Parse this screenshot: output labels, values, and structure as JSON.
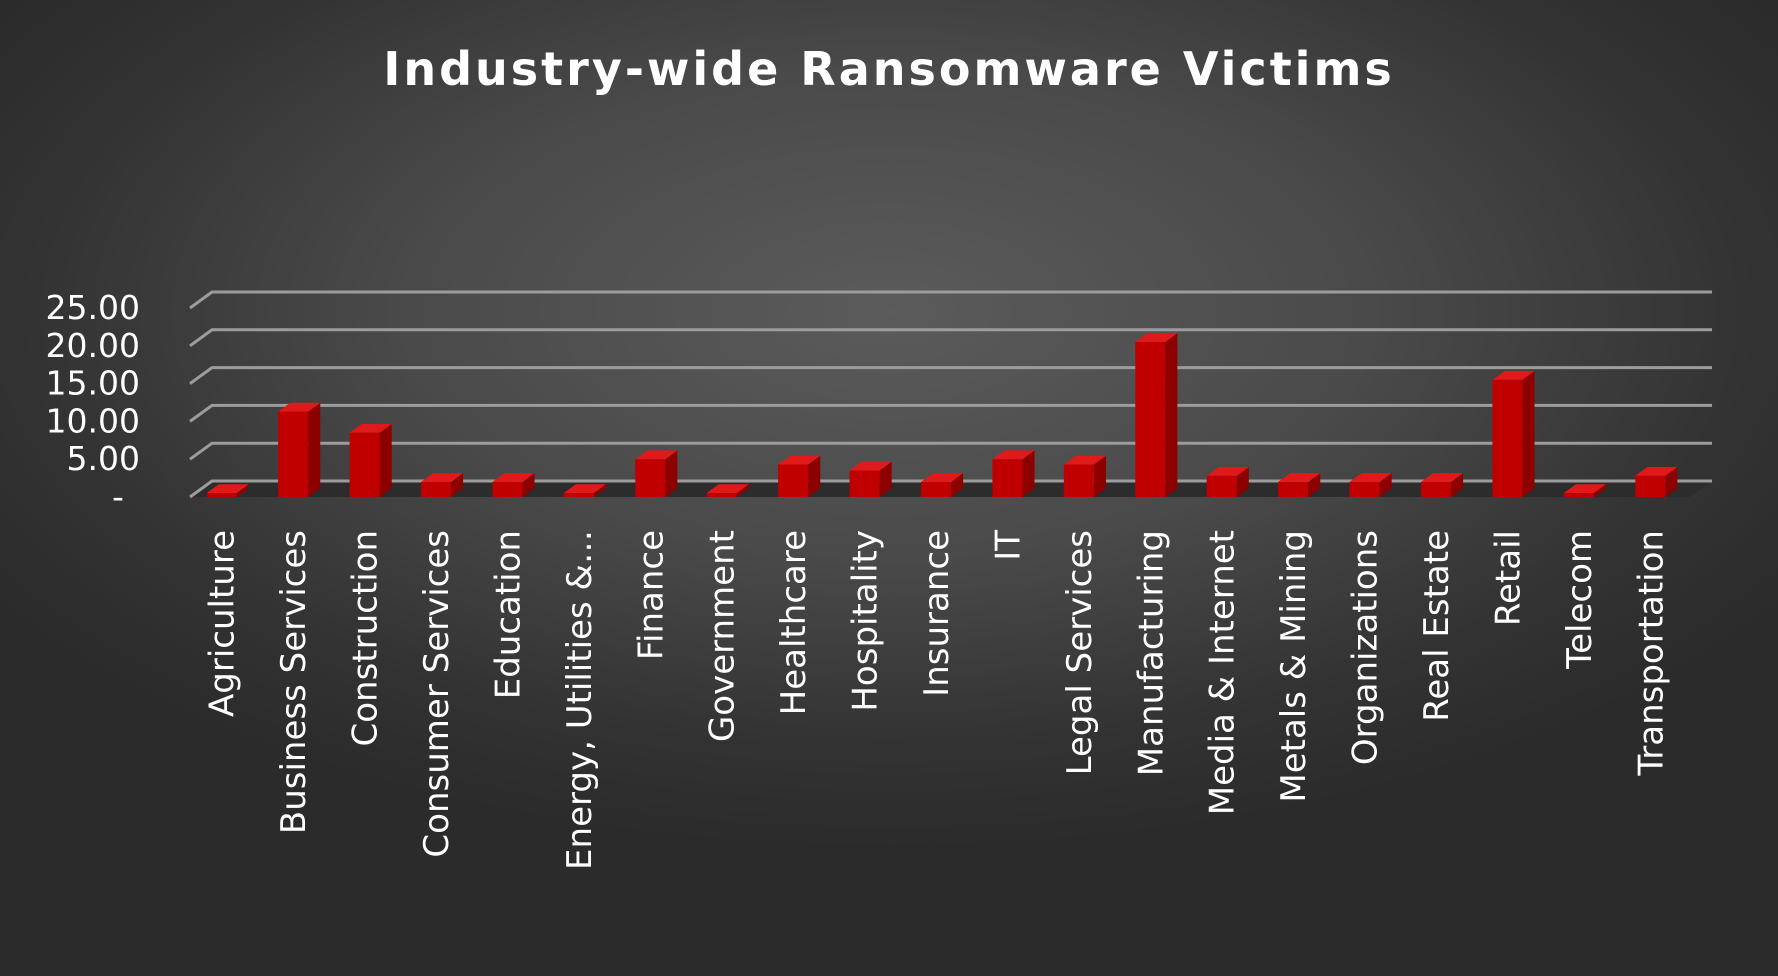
{
  "chart_data": {
    "type": "bar",
    "style": "3d-column",
    "title": "Industry-wide Ransomware Victims",
    "xlabel": "",
    "ylabel": "",
    "ylim": [
      0,
      25
    ],
    "y_ticks": [
      "-",
      "5.00",
      "10.00",
      "15.00",
      "20.00",
      "25.00"
    ],
    "grid": true,
    "legend": "none",
    "categories": [
      "Agriculture",
      "Business Services",
      "Construction",
      "Consumer Services",
      "Education",
      "Energy, Utilities &…",
      "Finance",
      "Government",
      "Healthcare",
      "Hospitality",
      "Insurance",
      "IT",
      "Legal Services",
      "Manufacturing",
      "Media & Internet",
      "Metals & Mining",
      "Organizations",
      "Real Estate",
      "Retail",
      "Telecom",
      "Transportation"
    ],
    "values": [
      0.5,
      11.3,
      8.5,
      2.0,
      2.0,
      0.5,
      5.0,
      0.5,
      4.3,
      3.5,
      2.0,
      5.0,
      4.3,
      20.5,
      2.8,
      2.0,
      2.0,
      2.0,
      15.5,
      0.5,
      2.8
    ],
    "colors": {
      "bar_front": "#c00000",
      "bar_side": "#8c0000",
      "bar_top": "#e01a1a",
      "gridline": "#9c9c9c",
      "text": "#ffffff",
      "floor": "#2c2c2c"
    }
  }
}
